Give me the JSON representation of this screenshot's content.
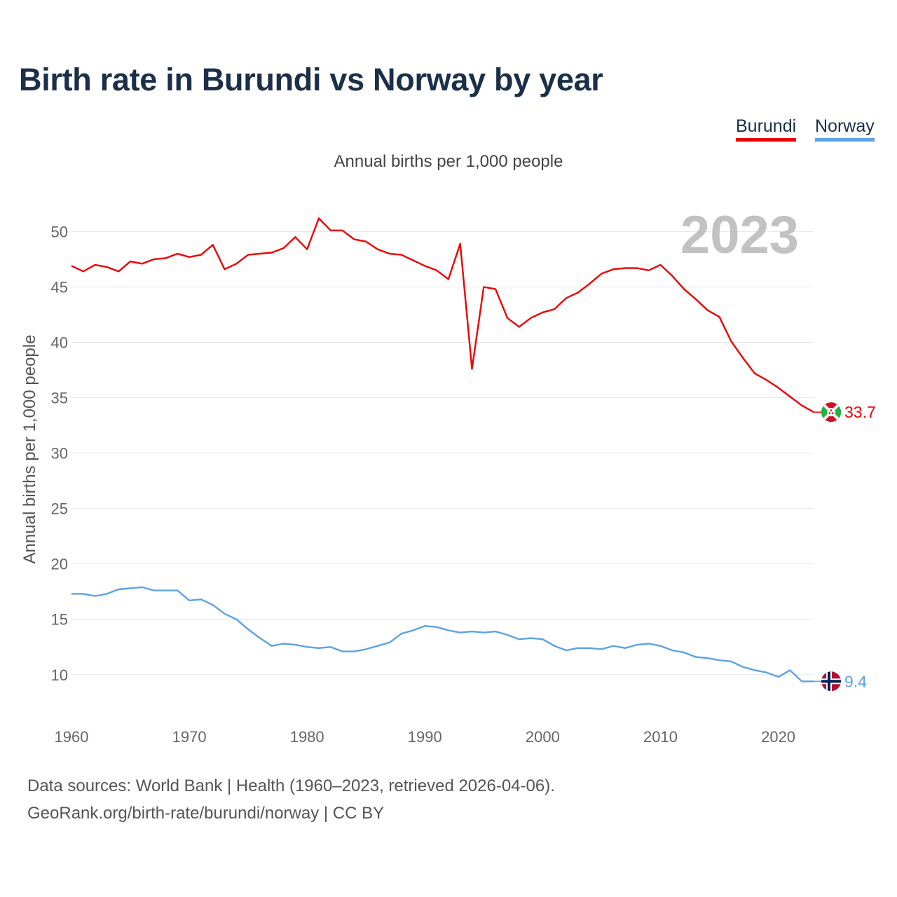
{
  "title": "Birth rate in Burundi vs Norway by year",
  "subtitle": "Annual births per 1,000 people",
  "legend": [
    {
      "name": "Burundi",
      "color": "#ee0000"
    },
    {
      "name": "Norway",
      "color": "#5ba3e5"
    }
  ],
  "year_overlay": "2023",
  "footer": {
    "source": "Data sources: World Bank | Health (1960–2023, retrieved 2026-04-06).",
    "url": "GeoRank.org/birth-rate/burundi/norway | CC BY"
  },
  "chart_data": {
    "type": "line",
    "title": "Birth rate in Burundi vs Norway by year",
    "subtitle": "Annual births per 1,000 people",
    "xlabel": "",
    "ylabel": "Annual births per 1,000 people",
    "xlim": [
      1960,
      2023
    ],
    "ylim": [
      6,
      53
    ],
    "x_ticks": [
      1960,
      1970,
      1980,
      1990,
      2000,
      2010,
      2020
    ],
    "y_ticks": [
      10,
      15,
      20,
      25,
      30,
      35,
      40,
      45,
      50
    ],
    "grid": true,
    "legend_position": "top-right",
    "x": [
      1960,
      1961,
      1962,
      1963,
      1964,
      1965,
      1966,
      1967,
      1968,
      1969,
      1970,
      1971,
      1972,
      1973,
      1974,
      1975,
      1976,
      1977,
      1978,
      1979,
      1980,
      1981,
      1982,
      1983,
      1984,
      1985,
      1986,
      1987,
      1988,
      1989,
      1990,
      1991,
      1992,
      1993,
      1994,
      1995,
      1996,
      1997,
      1998,
      1999,
      2000,
      2001,
      2002,
      2003,
      2004,
      2005,
      2006,
      2007,
      2008,
      2009,
      2010,
      2011,
      2012,
      2013,
      2014,
      2015,
      2016,
      2017,
      2018,
      2019,
      2020,
      2021,
      2022,
      2023
    ],
    "series": [
      {
        "name": "Burundi",
        "color": "#ee0000",
        "end_label": "33.7",
        "values": [
          46.9,
          46.4,
          47.0,
          46.8,
          46.4,
          47.3,
          47.1,
          47.5,
          47.6,
          48.0,
          47.7,
          47.9,
          48.8,
          46.6,
          47.1,
          47.9,
          48.0,
          48.1,
          48.5,
          49.5,
          48.4,
          51.2,
          50.1,
          50.1,
          49.3,
          49.1,
          48.4,
          48.0,
          47.9,
          47.4,
          46.9,
          46.5,
          45.7,
          48.9,
          37.6,
          45.0,
          44.8,
          42.2,
          41.4,
          42.2,
          42.7,
          43.0,
          44.0,
          44.5,
          45.3,
          46.2,
          46.6,
          46.7,
          46.7,
          46.5,
          47.0,
          46.0,
          44.8,
          43.9,
          42.9,
          42.3,
          40.1,
          38.6,
          37.2,
          36.6,
          35.9,
          35.1,
          34.3,
          33.7
        ]
      },
      {
        "name": "Norway",
        "color": "#5ba3e5",
        "end_label": "9.4",
        "values": [
          17.3,
          17.3,
          17.1,
          17.3,
          17.7,
          17.8,
          17.9,
          17.6,
          17.6,
          17.6,
          16.7,
          16.8,
          16.3,
          15.5,
          15.0,
          14.1,
          13.3,
          12.6,
          12.8,
          12.7,
          12.5,
          12.4,
          12.5,
          12.1,
          12.1,
          12.3,
          12.6,
          12.9,
          13.7,
          14.0,
          14.4,
          14.3,
          14.0,
          13.8,
          13.9,
          13.8,
          13.9,
          13.6,
          13.2,
          13.3,
          13.2,
          12.6,
          12.2,
          12.4,
          12.4,
          12.3,
          12.6,
          12.4,
          12.7,
          12.8,
          12.6,
          12.2,
          12.0,
          11.6,
          11.5,
          11.3,
          11.2,
          10.7,
          10.4,
          10.2,
          9.8,
          10.4,
          9.4,
          9.4
        ]
      }
    ]
  }
}
